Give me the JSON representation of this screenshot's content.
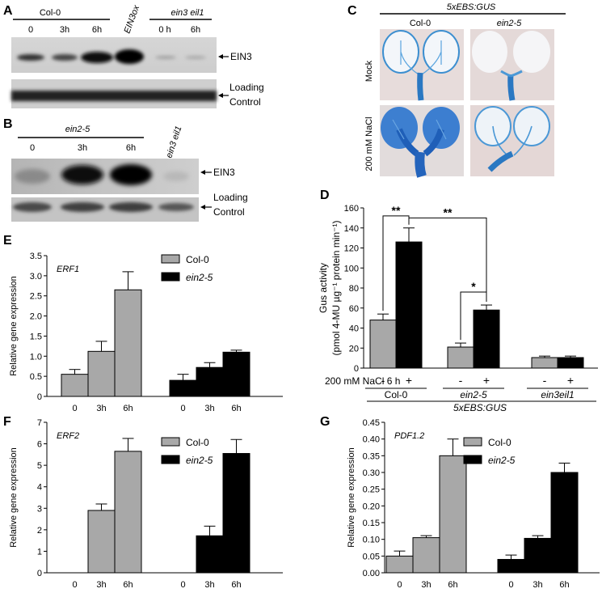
{
  "panel_letters": {
    "a": "A",
    "b": "B",
    "c": "C",
    "d": "D",
    "e": "E",
    "f": "F",
    "g": "G"
  },
  "blot_a": {
    "group1": "Col-0",
    "group2": "ein3 eil1",
    "lanes1": [
      "0",
      "3h",
      "6h"
    ],
    "lane_ox": "EIN3ox",
    "lanes2": [
      "0 h",
      "6h"
    ],
    "label_ein3": "EIN3",
    "label_loading_1": "Loading",
    "label_loading_2": "Control"
  },
  "blot_b": {
    "group1": "ein2-5",
    "lanes1": [
      "0",
      "3h",
      "6h"
    ],
    "lane_mut": "ein3 eil1",
    "label_ein3": "EIN3",
    "label_loading_1": "Loading",
    "label_loading_2": "Control"
  },
  "gus_images": {
    "title": "5xEBS:GUS",
    "col_left": "Col-0",
    "col_right": "ein2-5",
    "row_top": "Mock",
    "row_bottom": "200 mM NaCl"
  },
  "chart_data": [
    {
      "id": "D",
      "type": "bar",
      "ylabel_line1": "Gus activity",
      "ylabel_line2": "(pmol 4-MU µg⁻¹ protein min⁻¹)",
      "ylim": [
        0,
        160
      ],
      "yticks": [
        "0",
        "20",
        "40",
        "60",
        "80",
        "100",
        "120",
        "140",
        "160"
      ],
      "groups": [
        "Col-0",
        "ein2-5",
        "ein3eil1"
      ],
      "treatment_label": "200 mM NaCl 6 h",
      "treatment_signs": [
        "-",
        "+"
      ],
      "bottom_label": "5xEBS:GUS",
      "series": [
        {
          "values": [
            48,
            21,
            10.5
          ],
          "errors": [
            6,
            4,
            1.5
          ],
          "color": "#a8a8a8"
        },
        {
          "values": [
            126,
            58,
            10.5
          ],
          "errors": [
            14,
            5,
            1.5
          ],
          "color": "#000000"
        }
      ],
      "significance": [
        "**",
        "**",
        "*"
      ]
    },
    {
      "id": "E",
      "type": "bar",
      "gene": "ERF1",
      "ylabel": "Relative gene expression",
      "ylim": [
        0,
        3.5
      ],
      "yticks": [
        "0",
        "0.5",
        "1.0",
        "1.5",
        "2.0",
        "2.5",
        "3.0",
        "3.5"
      ],
      "categories": [
        "0",
        "3h",
        "6h"
      ],
      "series": [
        {
          "name": "Col-0",
          "values": [
            0.55,
            1.12,
            2.65
          ],
          "errors": [
            0.12,
            0.25,
            0.45
          ],
          "color": "#a8a8a8"
        },
        {
          "name": "ein2-5",
          "values": [
            0.4,
            0.72,
            1.1
          ],
          "errors": [
            0.15,
            0.12,
            0.05
          ],
          "color": "#000000"
        }
      ]
    },
    {
      "id": "F",
      "type": "bar",
      "gene": "ERF2",
      "ylabel": "Relative gene expression",
      "ylim": [
        0,
        7
      ],
      "yticks": [
        "0",
        "1",
        "2",
        "3",
        "4",
        "5",
        "6",
        "7"
      ],
      "categories": [
        "0",
        "3h",
        "6h"
      ],
      "series": [
        {
          "name": "Col-0",
          "values": [
            0,
            2.9,
            5.65
          ],
          "errors": [
            0,
            0.3,
            0.6
          ],
          "color": "#a8a8a8"
        },
        {
          "name": "ein2-5",
          "values": [
            0,
            1.72,
            5.55
          ],
          "errors": [
            0,
            0.45,
            0.65
          ],
          "color": "#000000"
        }
      ]
    },
    {
      "id": "G",
      "type": "bar",
      "gene": "PDF1.2",
      "ylabel": "Relative gene expression",
      "ylim": [
        0,
        0.45
      ],
      "yticks": [
        "0.00",
        "0.05",
        "0.10",
        "0.15",
        "0.20",
        "0.25",
        "0.30",
        "0.35",
        "0.40",
        "0.45"
      ],
      "categories": [
        "0",
        "3h",
        "6h"
      ],
      "series": [
        {
          "name": "Col-0",
          "values": [
            0.05,
            0.105,
            0.35
          ],
          "errors": [
            0.015,
            0.006,
            0.05
          ],
          "color": "#a8a8a8"
        },
        {
          "name": "ein2-5",
          "values": [
            0.04,
            0.103,
            0.3
          ],
          "errors": [
            0.013,
            0.008,
            0.028
          ],
          "color": "#000000"
        }
      ]
    }
  ]
}
